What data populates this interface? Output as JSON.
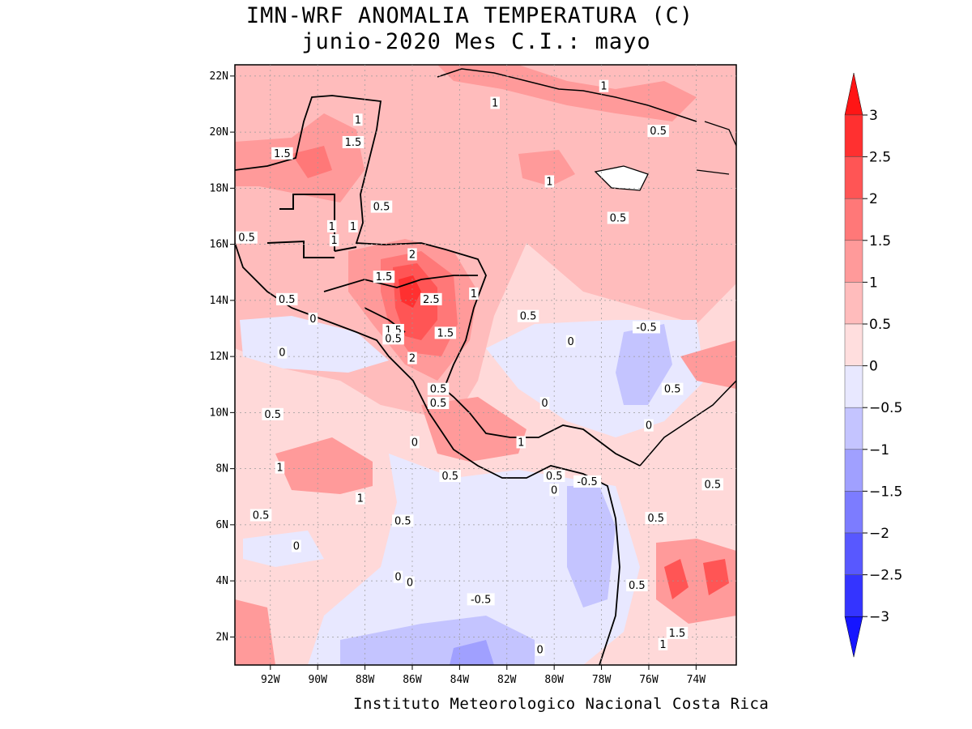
{
  "title": {
    "line1": "IMN-WRF  ANOMALIA TEMPERATURA (C)",
    "line2": "junio-2020 Mes C.I.: mayo"
  },
  "footer": "Instituto Meteorologico Nacional Costa Rica",
  "map": {
    "lon_range": [
      -93.5,
      -72.3
    ],
    "lat_range": [
      1.0,
      22.4
    ],
    "lat_ticks": [
      {
        "v": 22,
        "label": "22N"
      },
      {
        "v": 20,
        "label": "20N"
      },
      {
        "v": 18,
        "label": "18N"
      },
      {
        "v": 16,
        "label": "16N"
      },
      {
        "v": 14,
        "label": "14N"
      },
      {
        "v": 12,
        "label": "12N"
      },
      {
        "v": 10,
        "label": "10N"
      },
      {
        "v": 8,
        "label": "8N"
      },
      {
        "v": 6,
        "label": "6N"
      },
      {
        "v": 4,
        "label": "4N"
      },
      {
        "v": 2,
        "label": "2N"
      }
    ],
    "lon_ticks": [
      {
        "v": -92,
        "label": "92W"
      },
      {
        "v": -90,
        "label": "90W"
      },
      {
        "v": -88,
        "label": "88W"
      },
      {
        "v": -86,
        "label": "86W"
      },
      {
        "v": -84,
        "label": "84W"
      },
      {
        "v": -82,
        "label": "82W"
      },
      {
        "v": -80,
        "label": "80W"
      },
      {
        "v": -78,
        "label": "78W"
      },
      {
        "v": -76,
        "label": "76W"
      },
      {
        "v": -74,
        "label": "74W"
      }
    ],
    "grid": "dotted",
    "contour_labels": [
      {
        "lon": -86.0,
        "lat": 15.6,
        "text": "2"
      },
      {
        "lon": -85.2,
        "lat": 14.0,
        "text": "2.5"
      },
      {
        "lon": -86.0,
        "lat": 11.9,
        "text": "2"
      },
      {
        "lon": -87.2,
        "lat": 14.8,
        "text": "1.5"
      },
      {
        "lon": -84.6,
        "lat": 12.8,
        "text": "1.5"
      },
      {
        "lon": -91.5,
        "lat": 19.2,
        "text": "1.5"
      },
      {
        "lon": -88.5,
        "lat": 19.6,
        "text": "1.5"
      },
      {
        "lon": -74.8,
        "lat": 2.1,
        "text": "1.5"
      },
      {
        "lon": -86.8,
        "lat": 12.9,
        "text": "1.5"
      },
      {
        "lon": -88.3,
        "lat": 20.4,
        "text": "1"
      },
      {
        "lon": -82.5,
        "lat": 21.0,
        "text": "1"
      },
      {
        "lon": -77.9,
        "lat": 21.6,
        "text": "1"
      },
      {
        "lon": -80.2,
        "lat": 18.2,
        "text": "1"
      },
      {
        "lon": -89.4,
        "lat": 16.6,
        "text": "1"
      },
      {
        "lon": -89.3,
        "lat": 16.1,
        "text": "1"
      },
      {
        "lon": -88.5,
        "lat": 16.6,
        "text": "1"
      },
      {
        "lon": -83.4,
        "lat": 14.2,
        "text": "1"
      },
      {
        "lon": -81.4,
        "lat": 8.9,
        "text": "1"
      },
      {
        "lon": -91.6,
        "lat": 8.0,
        "text": "1"
      },
      {
        "lon": -88.2,
        "lat": 6.9,
        "text": "1"
      },
      {
        "lon": -75.4,
        "lat": 1.7,
        "text": "1"
      },
      {
        "lon": -75.6,
        "lat": 20.0,
        "text": "0.5"
      },
      {
        "lon": -87.3,
        "lat": 17.3,
        "text": "0.5"
      },
      {
        "lon": -77.3,
        "lat": 16.9,
        "text": "0.5"
      },
      {
        "lon": -93.0,
        "lat": 16.2,
        "text": "0.5"
      },
      {
        "lon": -91.3,
        "lat": 14.0,
        "text": "0.5"
      },
      {
        "lon": -81.1,
        "lat": 13.4,
        "text": "0.5"
      },
      {
        "lon": -86.8,
        "lat": 12.6,
        "text": "0.5"
      },
      {
        "lon": -84.9,
        "lat": 10.8,
        "text": "0.5"
      },
      {
        "lon": -84.9,
        "lat": 10.3,
        "text": "0.5"
      },
      {
        "lon": -91.9,
        "lat": 9.9,
        "text": "0.5"
      },
      {
        "lon": -84.4,
        "lat": 7.7,
        "text": "0.5"
      },
      {
        "lon": -80.0,
        "lat": 7.7,
        "text": "0.5"
      },
      {
        "lon": -92.4,
        "lat": 6.3,
        "text": "0.5"
      },
      {
        "lon": -86.4,
        "lat": 6.1,
        "text": "0.5"
      },
      {
        "lon": -75.7,
        "lat": 6.2,
        "text": "0.5"
      },
      {
        "lon": -76.5,
        "lat": 3.8,
        "text": "0.5"
      },
      {
        "lon": -75.0,
        "lat": 10.8,
        "text": "0.5"
      },
      {
        "lon": -73.3,
        "lat": 7.4,
        "text": "0.5"
      },
      {
        "lon": -90.2,
        "lat": 13.3,
        "text": "0"
      },
      {
        "lon": -91.5,
        "lat": 12.1,
        "text": "0"
      },
      {
        "lon": -79.3,
        "lat": 12.5,
        "text": "0"
      },
      {
        "lon": -80.4,
        "lat": 10.3,
        "text": "0"
      },
      {
        "lon": -85.9,
        "lat": 8.9,
        "text": "0"
      },
      {
        "lon": -80.0,
        "lat": 7.2,
        "text": "0"
      },
      {
        "lon": -90.9,
        "lat": 5.2,
        "text": "0"
      },
      {
        "lon": -86.6,
        "lat": 4.1,
        "text": "0"
      },
      {
        "lon": -80.6,
        "lat": 1.5,
        "text": "0"
      },
      {
        "lon": -76.0,
        "lat": 9.5,
        "text": "0"
      },
      {
        "lon": -86.1,
        "lat": 3.9,
        "text": "0"
      },
      {
        "lon": -76.1,
        "lat": 13.0,
        "text": "-0.5"
      },
      {
        "lon": -78.6,
        "lat": 7.5,
        "text": "-0.5"
      },
      {
        "lon": -83.1,
        "lat": 3.3,
        "text": "-0.5"
      }
    ]
  },
  "colorbar": {
    "levels": [
      "3",
      "2.5",
      "2",
      "1.5",
      "1",
      "0.5",
      "0",
      "−0.5",
      "−1",
      "−1.5",
      "−2",
      "−2.5",
      "−3"
    ],
    "colors": [
      "#ff3030",
      "#ff5555",
      "#ff7878",
      "#ff9a9a",
      "#ffbcbc",
      "#ffdede",
      "#e8e8ff",
      "#c4c4ff",
      "#a0a0ff",
      "#7c7cff",
      "#5858ff",
      "#3434ff"
    ],
    "top_arrow_color": "#ff1515",
    "bottom_arrow_color": "#1515ff"
  }
}
